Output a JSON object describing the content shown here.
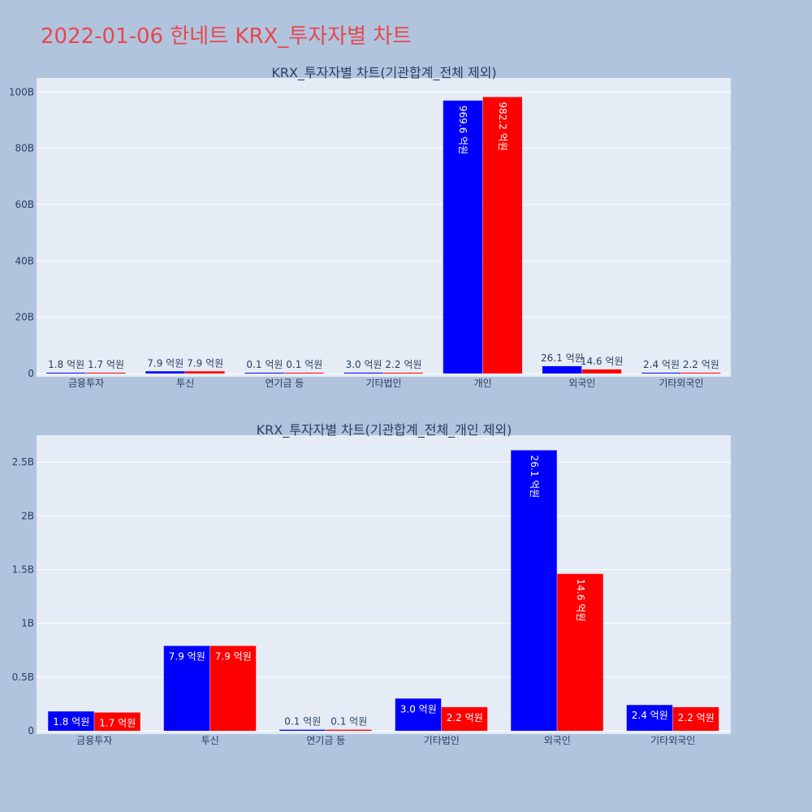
{
  "title": "2022-01-06 한네트 KRX_투자자별 차트",
  "colors": {
    "buy": "#0000ff",
    "sell": "#ff0000",
    "plot_bg": "#e5ecf6",
    "page_bg": "#b0c4de",
    "title": "#e8474f"
  },
  "chart_data": [
    {
      "type": "bar",
      "title": "KRX_투자자별 차트(기관합계_전체 제외)",
      "categories": [
        "금융투자",
        "투신",
        "연기금 등",
        "기타법인",
        "개인",
        "외국인",
        "기타외국인"
      ],
      "series": [
        {
          "values": [
            180000000,
            790000000,
            10000000,
            300000000,
            96960000000,
            2610000000,
            240000000
          ],
          "labels": [
            "1.8 억원",
            "7.9 억원",
            "0.1 억원",
            "3.0 억원",
            "969.6 억원",
            "26.1 억원",
            "2.4 억원"
          ]
        },
        {
          "values": [
            170000000,
            790000000,
            10000000,
            220000000,
            98220000000,
            1460000000,
            220000000
          ],
          "labels": [
            "1.7 억원",
            "7.9 억원",
            "0.1 억원",
            "2.2 억원",
            "982.2 억원",
            "14.6 억원",
            "2.2 억원"
          ]
        }
      ],
      "yticks": [
        0,
        20000000000,
        40000000000,
        60000000000,
        80000000000,
        100000000000
      ],
      "ytick_labels": [
        "0",
        "20B",
        "40B",
        "60B",
        "80B",
        "100B"
      ],
      "ylim": [
        0,
        105000000000
      ]
    },
    {
      "type": "bar",
      "title": "KRX_투자자별 차트(기관합계_전체_개인 제외)",
      "categories": [
        "금융투자",
        "투신",
        "연기금 등",
        "기타법인",
        "외국인",
        "기타외국인"
      ],
      "series": [
        {
          "values": [
            180000000,
            790000000,
            10000000,
            300000000,
            2610000000,
            240000000
          ],
          "labels": [
            "1.8 억원",
            "7.9 억원",
            "0.1 억원",
            "3.0 억원",
            "26.1 억원",
            "2.4 억원"
          ]
        },
        {
          "values": [
            170000000,
            790000000,
            10000000,
            220000000,
            1460000000,
            220000000
          ],
          "labels": [
            "1.7 억원",
            "7.9 억원",
            "0.1 억원",
            "2.2 억원",
            "14.6 억원",
            "2.2 억원"
          ]
        }
      ],
      "yticks": [
        0,
        500000000,
        1000000000,
        1500000000,
        2000000000,
        2500000000
      ],
      "ytick_labels": [
        "0",
        "0.5B",
        "1B",
        "1.5B",
        "2B",
        "2.5B"
      ],
      "ylim": [
        0,
        2750000000
      ]
    }
  ]
}
